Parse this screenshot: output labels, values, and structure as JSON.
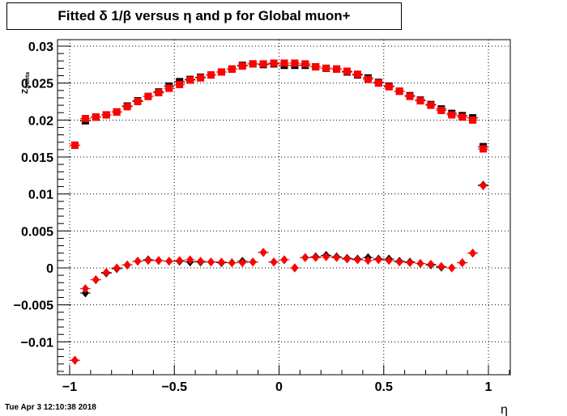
{
  "title": "Fitted δ 1/β versus η and p for Global muon+",
  "timestamp": "Tue Apr  3 12:10:38 2018",
  "chart_data": {
    "type": "scatter",
    "title": "Fitted δ 1/β versus η and p for Global muon+",
    "xlabel": "η",
    "ylabel": "Z_{1/Beta}",
    "xlim": [
      -1.1,
      1.1
    ],
    "ylim": [
      -0.0143,
      0.0303
    ],
    "grid": true,
    "x_ticks": [
      -1,
      -0.5,
      0,
      0.5,
      1
    ],
    "x_tick_labels": [
      "−1",
      "−0.5",
      "0",
      "0.5",
      "1"
    ],
    "y_ticks": [
      -0.01,
      -0.005,
      0,
      0.005,
      0.01,
      0.015,
      0.02,
      0.025,
      0.03
    ],
    "y_tick_labels": [
      "−0.01",
      "−0.005",
      "0",
      "0.005",
      "0.01",
      "0.015",
      "0.02",
      "0.025",
      "0.03"
    ],
    "series": [
      {
        "marker": "square",
        "color": "#000000",
        "x": [
          -0.975,
          -0.925,
          -0.875,
          -0.825,
          -0.775,
          -0.725,
          -0.675,
          -0.625,
          -0.575,
          -0.525,
          -0.475,
          -0.425,
          -0.375,
          -0.325,
          -0.275,
          -0.225,
          -0.175,
          -0.125,
          -0.075,
          -0.025,
          0.025,
          0.075,
          0.125,
          0.175,
          0.225,
          0.275,
          0.325,
          0.375,
          0.425,
          0.475,
          0.525,
          0.575,
          0.625,
          0.675,
          0.725,
          0.775,
          0.825,
          0.875,
          0.925,
          0.975
        ],
        "values": [
          0.0166,
          0.0199,
          0.0204,
          0.0207,
          0.0211,
          0.0219,
          0.0226,
          0.0232,
          0.0238,
          0.0246,
          0.0252,
          0.0255,
          0.0258,
          0.0261,
          0.0265,
          0.0269,
          0.0274,
          0.0276,
          0.0275,
          0.0276,
          0.0274,
          0.0274,
          0.0274,
          0.0272,
          0.027,
          0.0269,
          0.0265,
          0.0261,
          0.0257,
          0.0251,
          0.0246,
          0.0239,
          0.0233,
          0.0227,
          0.0221,
          0.0215,
          0.0209,
          0.0206,
          0.0203,
          0.0164
        ]
      },
      {
        "marker": "square",
        "color": "#ff0000",
        "x": [
          -0.975,
          -0.925,
          -0.875,
          -0.825,
          -0.775,
          -0.725,
          -0.675,
          -0.625,
          -0.575,
          -0.525,
          -0.475,
          -0.425,
          -0.375,
          -0.325,
          -0.275,
          -0.225,
          -0.175,
          -0.125,
          -0.075,
          -0.025,
          0.025,
          0.075,
          0.125,
          0.175,
          0.225,
          0.275,
          0.325,
          0.375,
          0.425,
          0.475,
          0.525,
          0.575,
          0.625,
          0.675,
          0.725,
          0.775,
          0.825,
          0.875,
          0.925,
          0.975
        ],
        "values": [
          0.0166,
          0.0202,
          0.0204,
          0.0207,
          0.0211,
          0.0218,
          0.0225,
          0.0232,
          0.0237,
          0.0243,
          0.0248,
          0.0254,
          0.0257,
          0.0261,
          0.0265,
          0.0269,
          0.0273,
          0.0276,
          0.0276,
          0.0277,
          0.0277,
          0.0277,
          0.0276,
          0.0272,
          0.027,
          0.0269,
          0.0266,
          0.0262,
          0.0255,
          0.025,
          0.0245,
          0.0239,
          0.0232,
          0.0226,
          0.022,
          0.0213,
          0.0207,
          0.0204,
          0.02,
          0.0161
        ]
      },
      {
        "marker": "diamond",
        "color": "#000000",
        "x": [
          -0.975,
          -0.925,
          -0.875,
          -0.825,
          -0.775,
          -0.725,
          -0.675,
          -0.625,
          -0.575,
          -0.525,
          -0.475,
          -0.425,
          -0.375,
          -0.325,
          -0.275,
          -0.225,
          -0.175,
          -0.125,
          -0.075,
          -0.025,
          0.025,
          0.075,
          0.125,
          0.175,
          0.225,
          0.275,
          0.325,
          0.375,
          0.425,
          0.475,
          0.525,
          0.575,
          0.625,
          0.675,
          0.725,
          0.775,
          0.825,
          0.875,
          0.925,
          0.975
        ],
        "values": [
          -0.0125,
          -0.0034,
          -0.0016,
          -0.0007,
          -0.0001,
          0.0004,
          0.0009,
          0.0011,
          0.001,
          0.0009,
          0.0009,
          0.0008,
          0.0008,
          0.0008,
          0.0007,
          0.0007,
          0.0009,
          0.0008,
          0.0021,
          0.0008,
          0.0011,
          0.0,
          0.0014,
          0.0015,
          0.0017,
          0.0015,
          0.0013,
          0.0012,
          0.0014,
          0.0012,
          0.0012,
          0.0009,
          0.0008,
          0.0006,
          0.0004,
          0.0001,
          0.0,
          0.0007,
          0.002,
          0.0112
        ]
      },
      {
        "marker": "diamond",
        "color": "#ff0000",
        "x": [
          -0.975,
          -0.925,
          -0.875,
          -0.825,
          -0.775,
          -0.725,
          -0.675,
          -0.625,
          -0.575,
          -0.525,
          -0.475,
          -0.425,
          -0.375,
          -0.325,
          -0.275,
          -0.225,
          -0.175,
          -0.125,
          -0.075,
          -0.025,
          0.025,
          0.075,
          0.125,
          0.175,
          0.225,
          0.275,
          0.325,
          0.375,
          0.425,
          0.475,
          0.525,
          0.575,
          0.625,
          0.675,
          0.725,
          0.775,
          0.825,
          0.875,
          0.925,
          0.975
        ],
        "values": [
          -0.0125,
          -0.0028,
          -0.0016,
          -0.0006,
          0.0,
          0.0004,
          0.0009,
          0.001,
          0.001,
          0.0009,
          0.001,
          0.0011,
          0.0009,
          0.0008,
          0.0008,
          0.0007,
          0.0007,
          0.0008,
          0.0021,
          0.0008,
          0.0011,
          0.0,
          0.0014,
          0.0014,
          0.0015,
          0.0014,
          0.0012,
          0.0011,
          0.001,
          0.0011,
          0.001,
          0.0008,
          0.0007,
          0.0006,
          0.0005,
          0.0002,
          0.0,
          0.0007,
          0.002,
          0.0111
        ]
      }
    ]
  }
}
